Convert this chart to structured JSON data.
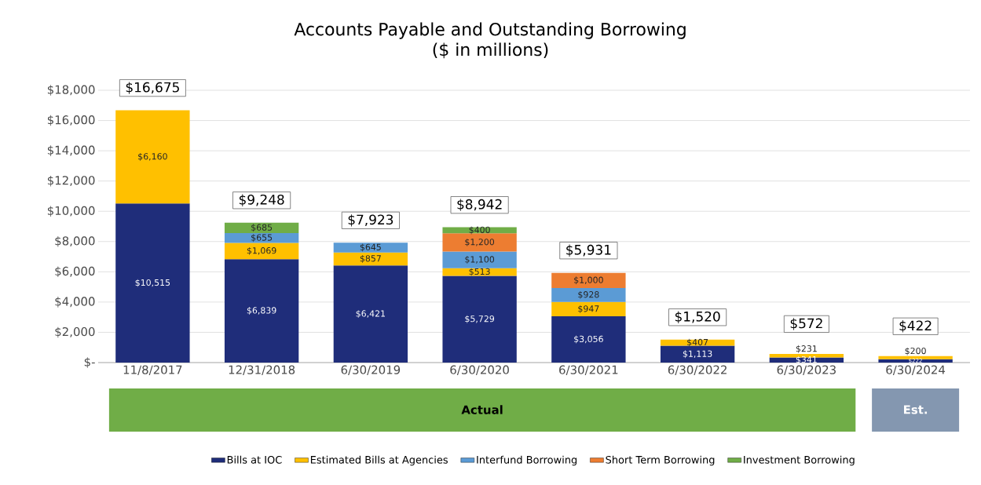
{
  "chart_data": {
    "type": "bar",
    "stacked": true,
    "title": "Accounts Payable and Outstanding Borrowing",
    "subtitle": "($ in millions)",
    "categories": [
      "11/8/2017",
      "12/31/2018",
      "6/30/2019",
      "6/30/2020",
      "6/30/2021",
      "6/30/2022",
      "6/30/2023",
      "6/30/2024"
    ],
    "series": [
      {
        "name": "Bills at IOC",
        "color": "#1f2d7a",
        "values": [
          10515,
          6839,
          6421,
          5729,
          3056,
          1113,
          341,
          222
        ],
        "value_labels": [
          "$10,515",
          "$6,839",
          "$6,421",
          "$5,729",
          "$3,056",
          "$1,113",
          "$341",
          "$222"
        ]
      },
      {
        "name": "Estimated Bills at Agencies",
        "color": "#ffc000",
        "values": [
          6160,
          1069,
          857,
          513,
          947,
          407,
          231,
          200
        ],
        "value_labels": [
          "$6,160",
          "$1,069",
          "$857",
          "$513",
          "$947",
          "$407",
          "$231",
          "$200"
        ]
      },
      {
        "name": "Interfund Borrowing",
        "color": "#5b9bd5",
        "values": [
          null,
          655,
          645,
          1100,
          928,
          null,
          null,
          null
        ],
        "value_labels": [
          null,
          "$655",
          "$645",
          "$1,100",
          "$928",
          null,
          null,
          null
        ]
      },
      {
        "name": "Short Term Borrowing",
        "color": "#ed7d31",
        "values": [
          null,
          null,
          null,
          1200,
          1000,
          null,
          null,
          null
        ],
        "value_labels": [
          null,
          null,
          null,
          "$1,200",
          "$1,000",
          null,
          null,
          null
        ]
      },
      {
        "name": "Investment Borrowing",
        "color": "#70ad47",
        "values": [
          null,
          685,
          null,
          400,
          null,
          null,
          null,
          null
        ],
        "value_labels": [
          null,
          "$685",
          null,
          "$400",
          null,
          null,
          null,
          null
        ]
      }
    ],
    "totals": [
      "$16,675",
      "$9,248",
      "$7,923",
      "$8,942",
      "$5,931",
      "$1,520",
      "$572",
      "$422"
    ],
    "ylim": [
      0,
      18000
    ],
    "yticks": [
      {
        "value": 0,
        "label": "$-"
      },
      {
        "value": 2000,
        "label": "$2,000"
      },
      {
        "value": 4000,
        "label": "$4,000"
      },
      {
        "value": 6000,
        "label": "$6,000"
      },
      {
        "value": 8000,
        "label": "$8,000"
      },
      {
        "value": 10000,
        "label": "$10,000"
      },
      {
        "value": 12000,
        "label": "$12,000"
      },
      {
        "value": 14000,
        "label": "$14,000"
      },
      {
        "value": 16000,
        "label": "$16,000"
      },
      {
        "value": 18000,
        "label": "$18,000"
      }
    ],
    "grid": "y",
    "legend": "bottom",
    "annotations": [
      "Actual",
      "Est."
    ]
  }
}
